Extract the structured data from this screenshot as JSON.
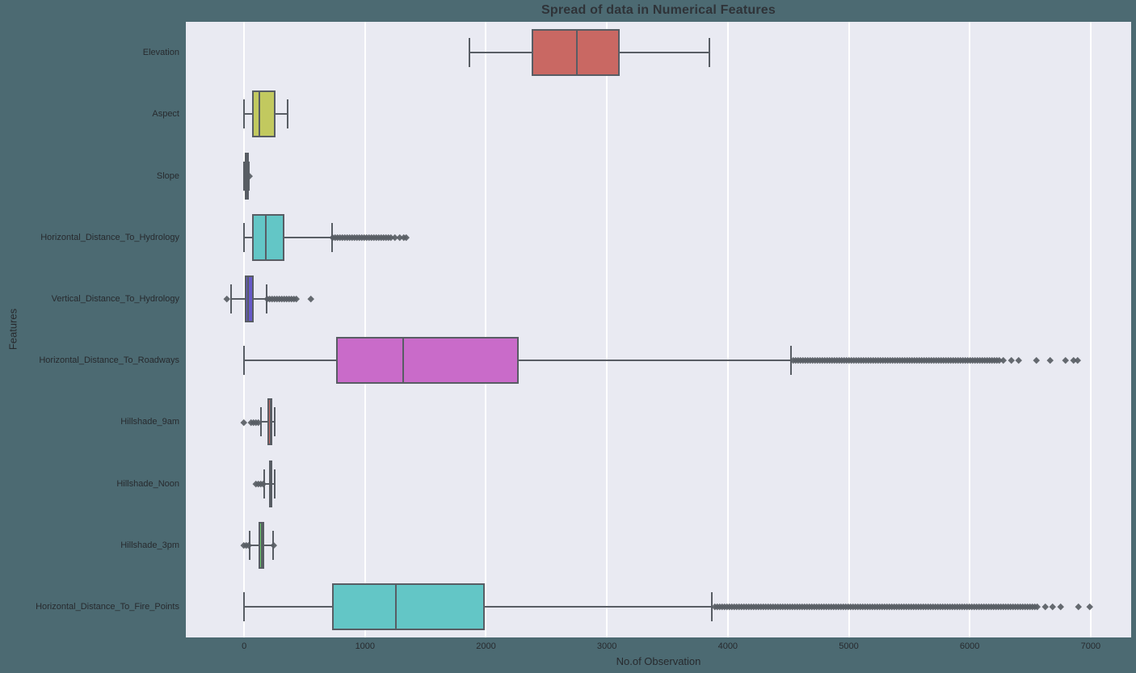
{
  "chart_data": {
    "type": "boxplot",
    "orientation": "horizontal",
    "title": "Spread of data in Numerical Features",
    "xlabel": "No.of Observation",
    "ylabel": "Features",
    "xlim": [
      -482,
      7335
    ],
    "xticks": [
      0,
      1000,
      2000,
      3000,
      4000,
      5000,
      6000,
      7000
    ],
    "grid": true,
    "legend": "none",
    "plot_bg_color": "#e9eaf2",
    "figure_bg_color": "#4c6a72",
    "line_color": "#585d64",
    "series": [
      {
        "label": "Elevation",
        "color": "#c96863",
        "whislo": 1863,
        "q1": 2376,
        "med": 2752,
        "q3": 3104,
        "whishi": 3849,
        "flier_ranges": [],
        "fliers": []
      },
      {
        "label": "Aspect",
        "color": "#c2c95f",
        "whislo": 0,
        "q1": 65,
        "med": 126,
        "q3": 261,
        "whishi": 360,
        "flier_ranges": [],
        "fliers": []
      },
      {
        "label": "Slope",
        "color": "#68c968",
        "whislo": 0,
        "q1": 10,
        "med": 15,
        "q3": 22,
        "whishi": 40,
        "flier_ranges": [
          {
            "from": 42,
            "to": 52,
            "density": "dense"
          }
        ],
        "fliers": []
      },
      {
        "label": "Horizontal_Distance_To_Hydrology",
        "color": "#63c6c6",
        "whislo": 0,
        "q1": 67,
        "med": 180,
        "q3": 330,
        "whishi": 724,
        "flier_ranges": [
          {
            "from": 732,
            "to": 1215,
            "density": "dense"
          }
        ],
        "fliers": [
          1245,
          1285,
          1318,
          1343
        ]
      },
      {
        "label": "Vertical_Distance_To_Hydrology",
        "color": "#6659c9",
        "whislo": -105,
        "q1": 5,
        "med": 32,
        "q3": 79,
        "whishi": 189,
        "flier_ranges": [
          {
            "from": -146,
            "to": -132,
            "density": "dense"
          },
          {
            "from": 192,
            "to": 433,
            "density": "dense"
          }
        ],
        "fliers": [
          554
        ]
      },
      {
        "label": "Horizontal_Distance_To_Roadways",
        "color": "#c96bc9",
        "whislo": 0,
        "q1": 764,
        "med": 1316,
        "q3": 2270,
        "whishi": 4525,
        "flier_ranges": [
          {
            "from": 4540,
            "to": 6250,
            "density": "dense"
          },
          {
            "from": 6280,
            "to": 6460,
            "density": "sparse"
          }
        ],
        "fliers": [
          6550,
          6666,
          6790,
          6860,
          6890
        ]
      },
      {
        "label": "Hillshade_9am",
        "color": "#c96863",
        "whislo": 138,
        "q1": 196,
        "med": 220,
        "q3": 235,
        "whishi": 254,
        "flier_ranges": [
          {
            "from": 60,
            "to": 136,
            "density": "dense"
          }
        ],
        "fliers": [
          0
        ]
      },
      {
        "label": "Hillshade_Noon",
        "color": "#c2c95f",
        "whislo": 165,
        "q1": 207,
        "med": 223,
        "q3": 235,
        "whishi": 254,
        "flier_ranges": [
          {
            "from": 99,
            "to": 163,
            "density": "dense"
          }
        ],
        "fliers": []
      },
      {
        "label": "Hillshade_3pm",
        "color": "#68c968",
        "whislo": 46,
        "q1": 119,
        "med": 143,
        "q3": 168,
        "whishi": 241,
        "flier_ranges": [
          {
            "from": 0,
            "to": 44,
            "density": "dense"
          },
          {
            "from": 243,
            "to": 248,
            "density": "dense"
          }
        ],
        "fliers": []
      },
      {
        "label": "Horizontal_Distance_To_Fire_Points",
        "color": "#63c6c6",
        "whislo": 0,
        "q1": 730,
        "med": 1256,
        "q3": 1988,
        "whishi": 3870,
        "flier_ranges": [
          {
            "from": 3890,
            "to": 6540,
            "density": "dense"
          },
          {
            "from": 6560,
            "to": 6800,
            "density": "sparse"
          }
        ],
        "fliers": [
          6900,
          6993
        ]
      }
    ]
  }
}
